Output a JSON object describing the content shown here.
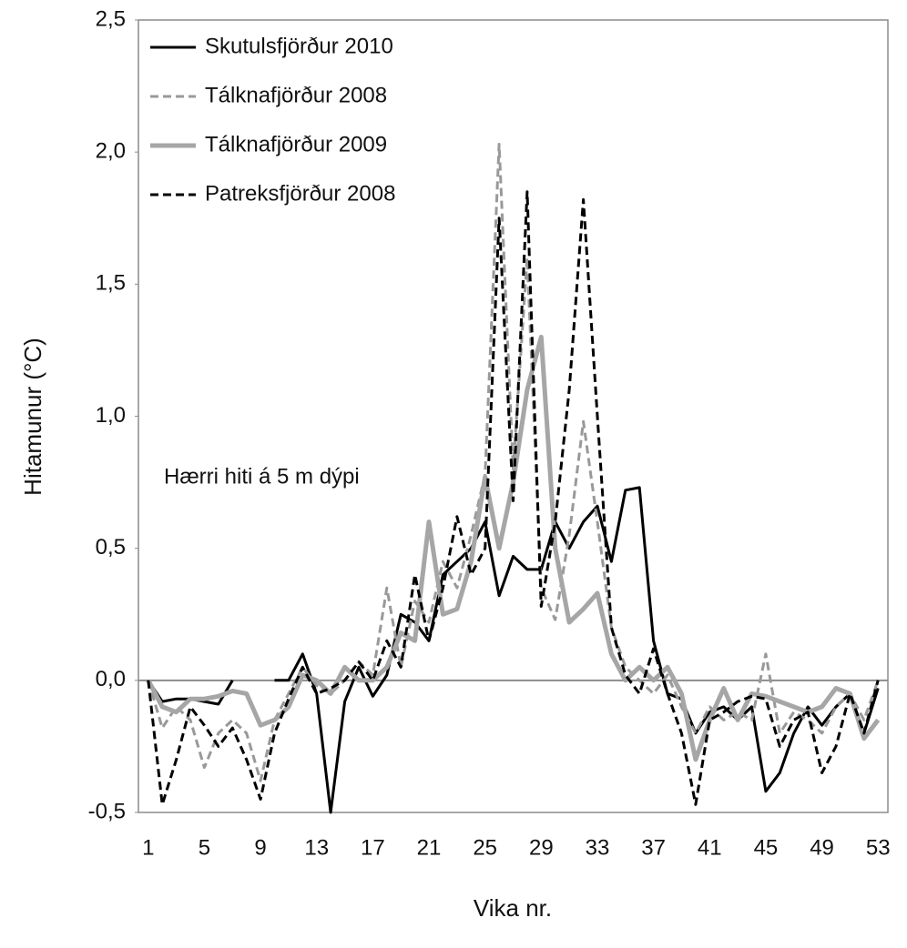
{
  "chart_data": {
    "type": "line",
    "annotation": "Hærri hiti á 5 m dýpi",
    "x_label": "Vika nr.",
    "y_label": "Hitamunur (°C)",
    "x": [
      1,
      2,
      3,
      4,
      5,
      6,
      7,
      8,
      9,
      10,
      11,
      12,
      13,
      14,
      15,
      16,
      17,
      18,
      19,
      20,
      21,
      22,
      23,
      24,
      25,
      26,
      27,
      28,
      29,
      30,
      31,
      32,
      33,
      34,
      35,
      36,
      37,
      38,
      39,
      40,
      41,
      42,
      43,
      44,
      45,
      46,
      47,
      48,
      49,
      50,
      51,
      52,
      53
    ],
    "xlim": [
      0.3,
      53.7
    ],
    "xticks": [
      1,
      5,
      9,
      13,
      17,
      21,
      25,
      29,
      33,
      37,
      41,
      45,
      49,
      53
    ],
    "ylim": [
      -0.5,
      2.5
    ],
    "yticks": [
      {
        "value": -0.5,
        "label": "-0,5"
      },
      {
        "value": 0,
        "label": "0,0"
      },
      {
        "value": 0.5,
        "label": "0,5"
      },
      {
        "value": 1,
        "label": "1,0"
      },
      {
        "value": 1.5,
        "label": "1,5"
      },
      {
        "value": 2,
        "label": "2,0"
      },
      {
        "value": 2.5,
        "label": "2,5"
      }
    ],
    "zero_line": true,
    "legend": "upper left",
    "series": [
      {
        "name": "Skutulsfjörður 2010",
        "color": "#000000",
        "dash": false,
        "width": 3,
        "values": [
          0,
          -0.08,
          -0.07,
          -0.07,
          -0.08,
          -0.09,
          0,
          null,
          null,
          0,
          0,
          0.1,
          -0.05,
          -0.5,
          -0.08,
          0.05,
          -0.06,
          0.02,
          0.25,
          0.22,
          0.15,
          0.4,
          0.45,
          0.5,
          0.6,
          0.32,
          0.47,
          0.42,
          0.42,
          0.6,
          0.5,
          0.6,
          0.66,
          0.45,
          0.72,
          0.73,
          0.15,
          -0.05,
          -0.07,
          -0.2,
          -0.12,
          -0.1,
          -0.15,
          -0.1,
          -0.42,
          -0.35,
          -0.2,
          -0.1,
          -0.17,
          -0.1,
          -0.05,
          -0.2,
          -0.03
        ]
      },
      {
        "name": "Tálknafjörður 2008",
        "color": "#999999",
        "dash": true,
        "width": 3,
        "values": [
          0,
          -0.18,
          -0.1,
          -0.15,
          -0.33,
          -0.2,
          -0.15,
          -0.2,
          -0.38,
          -0.15,
          -0.05,
          0.05,
          -0.02,
          -0.05,
          0,
          0.07,
          0.02,
          0.35,
          0.05,
          0.3,
          0.22,
          0.45,
          0.35,
          0.55,
          0.78,
          2.03,
          0.8,
          1.6,
          0.35,
          0.23,
          0.55,
          0.98,
          0.6,
          0.2,
          0.05,
          0,
          -0.05,
          0.02,
          -0.1,
          -0.2,
          -0.1,
          -0.15,
          -0.12,
          -0.15,
          0.1,
          -0.2,
          -0.12,
          -0.15,
          -0.2,
          -0.1,
          -0.05,
          -0.15,
          0
        ]
      },
      {
        "name": "Tálknafjörður 2009",
        "color": "#a6a6a6",
        "dash": false,
        "width": 5,
        "values": [
          0,
          -0.1,
          -0.12,
          -0.07,
          -0.07,
          -0.06,
          -0.04,
          -0.05,
          -0.17,
          -0.15,
          -0.1,
          0.02,
          0,
          -0.05,
          0.05,
          0,
          0,
          0.05,
          0.18,
          0.15,
          0.6,
          0.25,
          0.27,
          0.45,
          0.77,
          0.5,
          0.75,
          1.1,
          1.3,
          0.5,
          0.22,
          0.27,
          0.33,
          0.1,
          0,
          0.05,
          0,
          0.05,
          -0.05,
          -0.3,
          -0.15,
          -0.03,
          -0.15,
          -0.05,
          -0.06,
          -0.08,
          -0.1,
          -0.12,
          -0.1,
          -0.03,
          -0.05,
          -0.22,
          -0.15
        ]
      },
      {
        "name": "Patreksfjörður 2008",
        "color": "#000000",
        "dash": true,
        "width": 3,
        "values": [
          0,
          -0.47,
          -0.3,
          -0.1,
          -0.17,
          -0.25,
          -0.18,
          -0.3,
          -0.45,
          -0.2,
          -0.07,
          0.05,
          -0.05,
          -0.03,
          0,
          0.07,
          0,
          0.15,
          0.05,
          0.4,
          0.15,
          0.35,
          0.62,
          0.4,
          0.5,
          1.75,
          0.68,
          1.85,
          0.28,
          0.6,
          1.1,
          1.82,
          1,
          0.2,
          0.02,
          -0.05,
          0.12,
          -0.05,
          -0.2,
          -0.47,
          -0.15,
          -0.12,
          -0.08,
          -0.06,
          -0.07,
          -0.25,
          -0.15,
          -0.12,
          -0.35,
          -0.25,
          -0.05,
          -0.2,
          0
        ]
      }
    ]
  }
}
